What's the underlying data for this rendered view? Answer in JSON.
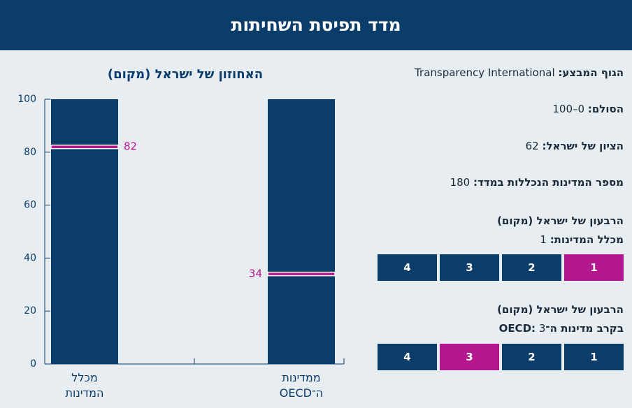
{
  "header": {
    "title": "מדד תפיסת השחיתות"
  },
  "info": {
    "agency": {
      "label": "הגוף המבצע:",
      "value": "Transparency International"
    },
    "scale": {
      "label": "הסולם:",
      "value": "0–100"
    },
    "score": {
      "label": "הציון של ישראל:",
      "value": 62
    },
    "countries": {
      "label": "מספר המדינות הנכללות במדד:",
      "value": 180
    },
    "quartile_all": {
      "heading": "הרבעון של ישראל (מקום)",
      "label": "מכלל המדינות:",
      "value": 1,
      "boxes": [
        1,
        2,
        3,
        4
      ]
    },
    "quartile_oecd": {
      "heading": "הרבעון של ישראל (מקום)",
      "label": "בקרב מדינות ה־OECD:",
      "value": 3,
      "boxes": [
        1,
        2,
        3,
        4
      ]
    }
  },
  "chart_data": {
    "type": "bar",
    "title": "האחוזון של ישראל (מקום)",
    "categories": [
      "מכלל המדינות",
      "ממדינות ה־OECD"
    ],
    "values": [
      82,
      34
    ],
    "ylim": [
      0,
      100
    ],
    "yticks": [
      0,
      20,
      40,
      60,
      80,
      100
    ],
    "color": "#0b3d6b",
    "highlight_color": "#b3168e"
  }
}
